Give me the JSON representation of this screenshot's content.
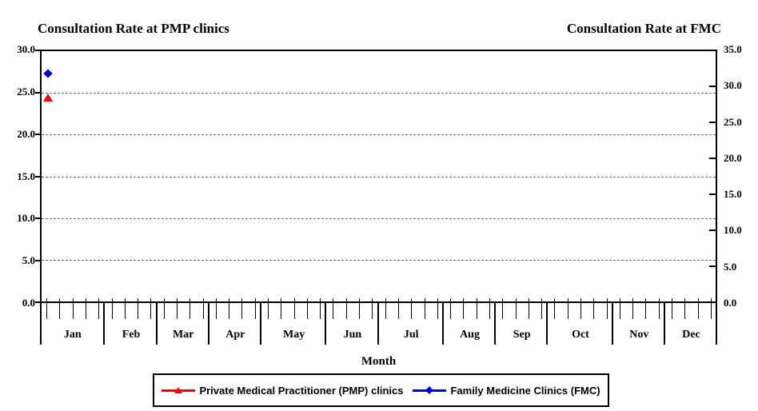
{
  "chart": {
    "title_left": "Consultation Rate at PMP clinics",
    "title_right": "Consultation Rate at FMC",
    "x_axis_title": "Month"
  },
  "axes": {
    "left": {
      "labels": [
        "30.0",
        "25.0",
        "20.0",
        "15.0",
        "10.0",
        "5.0",
        "0.0"
      ],
      "max": 30,
      "gridlines": [
        25,
        20,
        15,
        10,
        5
      ]
    },
    "right": {
      "labels": [
        "35.0",
        "30.0",
        "25.0",
        "20.0",
        "15.0",
        "10.0",
        "5.0",
        "0.0"
      ],
      "max": 35
    },
    "x": {
      "months": [
        {
          "label": "Jan",
          "weeks": 5
        },
        {
          "label": "Feb",
          "weeks": 4
        },
        {
          "label": "Mar",
          "weeks": 4
        },
        {
          "label": "Apr",
          "weeks": 4
        },
        {
          "label": "May",
          "weeks": 5
        },
        {
          "label": "Jun",
          "weeks": 4
        },
        {
          "label": "Jul",
          "weeks": 5
        },
        {
          "label": "Aug",
          "weeks": 4
        },
        {
          "label": "Sep",
          "weeks": 4
        },
        {
          "label": "Oct",
          "weeks": 5
        },
        {
          "label": "Nov",
          "weeks": 4
        },
        {
          "label": "Dec",
          "weeks": 4
        }
      ]
    }
  },
  "legend": {
    "items": [
      {
        "id": "pmp",
        "label": "Private Medical Practitioner (PMP) clinics",
        "marker": "triangle",
        "color": "#FF0000"
      },
      {
        "id": "fmc",
        "label": "Family Medicine Clinics (FMC)",
        "marker": "diamond",
        "color": "#0000E8"
      }
    ]
  },
  "chart_data": {
    "type": "line",
    "x_unit": "weekly data points grouped into months Jan–Dec",
    "xlabel": "Month",
    "grid": "horizontal dashed gridlines at left-axis values 5, 10, 15, 20, 25",
    "left_axis": {
      "title": "Consultation Rate at PMP clinics",
      "range": [
        0,
        30
      ],
      "tick_step": 5
    },
    "right_axis": {
      "title": "Consultation Rate at FMC",
      "range": [
        0,
        35
      ],
      "tick_step": 5
    },
    "legend_position": "bottom",
    "series": [
      {
        "name": "Private Medical Practitioner (PMP) clinics",
        "axis": "left",
        "marker": "triangle",
        "color": "#FF0000",
        "points": [
          {
            "x": "Jan week 1",
            "y": 24.4
          }
        ]
      },
      {
        "name": "Family Medicine Clinics (FMC)",
        "axis": "right",
        "marker": "diamond",
        "color": "#0000E8",
        "points": [
          {
            "x": "Jan week 1",
            "y": 31.9
          }
        ]
      }
    ]
  }
}
